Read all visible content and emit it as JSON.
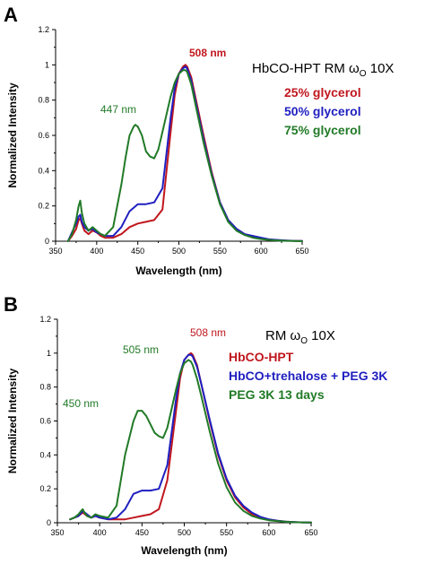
{
  "colors": {
    "red": "#c0171e",
    "blue": "#1f1fc0",
    "green": "#217a27",
    "black": "#000000"
  },
  "chart_data": [
    {
      "type": "line",
      "panel_label": "A",
      "xlabel": "Wavelength (nm)",
      "ylabel": "Normalized Intensity",
      "xlim": [
        350,
        650
      ],
      "ylim": [
        0,
        1.2
      ],
      "xticks": [
        "350",
        "400",
        "450",
        "500",
        "550",
        "600",
        "650"
      ],
      "yticks": [
        "0",
        "0.2",
        "0.4",
        "0.6",
        "0.8",
        "1",
        "1.2"
      ],
      "grid": false,
      "legend_title": "HbCO-HPT RM",
      "legend_title_symbol": "ω",
      "legend_title_subscript": "O",
      "legend_title_suffix": " 10X",
      "annotations": [
        {
          "text": "508 nm",
          "x": 508,
          "y": 1.04,
          "color": "#c0171e",
          "bold": true
        },
        {
          "text": "447 nm",
          "x": 447,
          "y": 0.71,
          "color": "#217a27",
          "bold": false
        }
      ],
      "series": [
        {
          "name": "25% glycerol",
          "color": "#c0171e",
          "x": [
            365,
            370,
            375,
            378,
            380,
            382,
            385,
            390,
            395,
            400,
            405,
            410,
            420,
            430,
            440,
            450,
            460,
            470,
            480,
            490,
            495,
            500,
            505,
            508,
            510,
            515,
            520,
            530,
            540,
            550,
            560,
            570,
            580,
            590,
            600,
            610,
            620,
            630,
            640,
            650
          ],
          "y": [
            0.0,
            0.03,
            0.07,
            0.12,
            0.13,
            0.1,
            0.06,
            0.04,
            0.06,
            0.05,
            0.03,
            0.02,
            0.02,
            0.04,
            0.08,
            0.1,
            0.11,
            0.12,
            0.18,
            0.62,
            0.83,
            0.95,
            0.99,
            1.0,
            0.99,
            0.93,
            0.82,
            0.6,
            0.39,
            0.22,
            0.12,
            0.07,
            0.04,
            0.025,
            0.015,
            0.01,
            0.005,
            0.003,
            0.002,
            0.001
          ]
        },
        {
          "name": "50% glycerol",
          "color": "#1f1fc0",
          "x": [
            365,
            370,
            375,
            378,
            380,
            382,
            385,
            390,
            395,
            400,
            405,
            410,
            420,
            430,
            440,
            450,
            460,
            470,
            480,
            490,
            495,
            500,
            505,
            508,
            510,
            515,
            520,
            530,
            540,
            550,
            560,
            570,
            580,
            590,
            600,
            610,
            620,
            630,
            640,
            650
          ],
          "y": [
            0.0,
            0.05,
            0.1,
            0.14,
            0.15,
            0.11,
            0.08,
            0.06,
            0.07,
            0.05,
            0.04,
            0.03,
            0.03,
            0.08,
            0.17,
            0.21,
            0.21,
            0.22,
            0.3,
            0.7,
            0.87,
            0.95,
            0.98,
            0.99,
            0.98,
            0.91,
            0.8,
            0.58,
            0.38,
            0.22,
            0.12,
            0.07,
            0.04,
            0.03,
            0.02,
            0.01,
            0.007,
            0.004,
            0.002,
            0.001
          ]
        },
        {
          "name": "75% glycerol",
          "color": "#217a27",
          "x": [
            365,
            370,
            375,
            378,
            380,
            382,
            385,
            390,
            395,
            400,
            405,
            410,
            420,
            430,
            435,
            440,
            445,
            447,
            450,
            455,
            460,
            465,
            470,
            475,
            480,
            490,
            495,
            500,
            505,
            508,
            510,
            515,
            520,
            530,
            540,
            550,
            560,
            570,
            580,
            590,
            600,
            610,
            620,
            630,
            640,
            650
          ],
          "y": [
            0.0,
            0.04,
            0.12,
            0.2,
            0.23,
            0.16,
            0.1,
            0.06,
            0.08,
            0.06,
            0.04,
            0.03,
            0.08,
            0.32,
            0.47,
            0.6,
            0.65,
            0.66,
            0.65,
            0.6,
            0.51,
            0.48,
            0.47,
            0.52,
            0.62,
            0.82,
            0.9,
            0.95,
            0.97,
            0.97,
            0.96,
            0.89,
            0.78,
            0.56,
            0.37,
            0.21,
            0.11,
            0.06,
            0.035,
            0.02,
            0.012,
            0.007,
            0.004,
            0.002,
            0.001,
            0.0
          ]
        }
      ]
    },
    {
      "type": "line",
      "panel_label": "B",
      "xlabel": "Wavelength (nm)",
      "ylabel": "Normalized Intensity",
      "xlim": [
        350,
        650
      ],
      "ylim": [
        0,
        1.2
      ],
      "xticks": [
        "350",
        "400",
        "450",
        "500",
        "550",
        "600",
        "650"
      ],
      "yticks": [
        "0",
        "0.2",
        "0.4",
        "0.6",
        "0.8",
        "1",
        "1.2"
      ],
      "grid": false,
      "legend_title": "RM",
      "legend_title_symbol": "ω",
      "legend_title_subscript": "O",
      "legend_title_suffix": " 10X",
      "annotations": [
        {
          "text": "508 nm",
          "x": 508,
          "y": 1.05,
          "color": "#c0171e",
          "bold": false
        },
        {
          "text": "505 nm",
          "x": 505,
          "y": 0.9,
          "color": "#217a27",
          "bold": false
        },
        {
          "text": "450 nm",
          "x": 450,
          "y": 0.73,
          "color": "#217a27",
          "bold": false
        }
      ],
      "series": [
        {
          "name": "HbCO-HPT",
          "color": "#c0171e",
          "x": [
            365,
            370,
            375,
            380,
            385,
            390,
            395,
            400,
            410,
            420,
            430,
            440,
            450,
            460,
            470,
            480,
            490,
            495,
            500,
            505,
            508,
            510,
            515,
            520,
            530,
            540,
            550,
            560,
            570,
            580,
            590,
            600,
            610,
            620,
            630,
            640,
            650
          ],
          "y": [
            0.02,
            0.03,
            0.04,
            0.06,
            0.04,
            0.03,
            0.04,
            0.03,
            0.02,
            0.02,
            0.02,
            0.03,
            0.04,
            0.05,
            0.08,
            0.25,
            0.65,
            0.85,
            0.96,
            0.99,
            1.0,
            0.99,
            0.93,
            0.82,
            0.6,
            0.4,
            0.25,
            0.15,
            0.09,
            0.05,
            0.03,
            0.02,
            0.012,
            0.007,
            0.004,
            0.002,
            0.001
          ]
        },
        {
          "name": "HbCO+trehalose + PEG 3K",
          "color": "#1f1fc0",
          "x": [
            365,
            370,
            375,
            380,
            385,
            390,
            395,
            400,
            410,
            420,
            430,
            440,
            450,
            460,
            470,
            480,
            490,
            495,
            500,
            505,
            508,
            510,
            515,
            520,
            530,
            540,
            550,
            560,
            570,
            580,
            590,
            600,
            610,
            620,
            630,
            640,
            650
          ],
          "y": [
            0.02,
            0.03,
            0.04,
            0.07,
            0.05,
            0.03,
            0.04,
            0.03,
            0.02,
            0.03,
            0.08,
            0.17,
            0.19,
            0.19,
            0.2,
            0.34,
            0.72,
            0.88,
            0.96,
            0.99,
            0.99,
            0.98,
            0.92,
            0.82,
            0.61,
            0.41,
            0.26,
            0.16,
            0.1,
            0.06,
            0.035,
            0.02,
            0.012,
            0.007,
            0.004,
            0.002,
            0.001
          ]
        },
        {
          "name": "PEG 3K 13 days",
          "color": "#217a27",
          "x": [
            365,
            370,
            375,
            378,
            380,
            382,
            385,
            390,
            395,
            400,
            410,
            420,
            430,
            440,
            445,
            450,
            455,
            460,
            465,
            470,
            475,
            480,
            490,
            495,
            500,
            505,
            508,
            510,
            515,
            520,
            530,
            540,
            550,
            560,
            570,
            580,
            590,
            600,
            610,
            620,
            630,
            640,
            650
          ],
          "y": [
            0.02,
            0.03,
            0.05,
            0.07,
            0.08,
            0.06,
            0.04,
            0.03,
            0.05,
            0.04,
            0.03,
            0.1,
            0.4,
            0.6,
            0.66,
            0.66,
            0.63,
            0.58,
            0.53,
            0.51,
            0.5,
            0.56,
            0.78,
            0.88,
            0.94,
            0.96,
            0.95,
            0.93,
            0.85,
            0.75,
            0.54,
            0.35,
            0.21,
            0.12,
            0.07,
            0.04,
            0.025,
            0.015,
            0.01,
            0.006,
            0.003,
            0.002,
            0.001
          ]
        }
      ]
    }
  ]
}
